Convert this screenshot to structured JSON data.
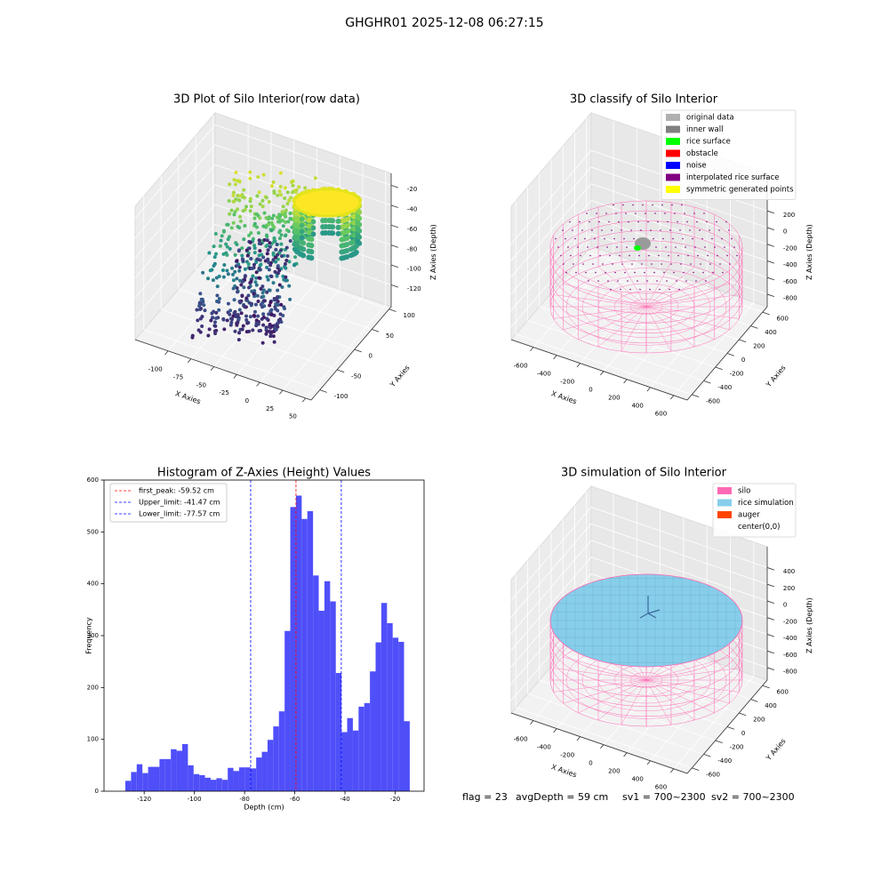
{
  "title": "GHGHR01 2025-12-08 06:27:15",
  "chart_data": [
    {
      "type": "scatter3d",
      "title": "3D Plot of Silo Interior(row data)",
      "xlabel": "X Axies",
      "ylabel": "Y Axies",
      "zlabel": "Z Axies (Depth)",
      "xlim": [
        -136,
        56
      ],
      "ylim": [
        -125,
        106
      ],
      "zlim": [
        -142,
        -8
      ],
      "xticks": [
        -100,
        -75,
        -50,
        -25,
        0,
        25,
        50
      ],
      "yticks": [
        -100,
        -50,
        0,
        50,
        100
      ],
      "zticks": [
        -120,
        -100,
        -80,
        -60,
        -40,
        -20
      ]
    },
    {
      "type": "scatter3d",
      "title": "3D classify of Silo Interior",
      "xlabel": "X Axies",
      "ylabel": "Y Axies",
      "zlabel": "Z Axies (Depth)",
      "xlim": [
        -790,
        715
      ],
      "ylim": [
        -680,
        680
      ],
      "zlim": [
        -950,
        650
      ],
      "xticks": [
        -600,
        -400,
        -200,
        0,
        200,
        400,
        600
      ],
      "yticks": [
        -600,
        -400,
        -200,
        0,
        200,
        400,
        600
      ],
      "zticks": [
        -800,
        -600,
        -400,
        -200,
        0,
        200
      ],
      "legend": {
        "loc": "upper right",
        "entries": [
          {
            "name": "original data",
            "color": "#b0b0b0"
          },
          {
            "name": "inner wall",
            "color": "#808080"
          },
          {
            "name": "rice surface",
            "color": "#00ff00"
          },
          {
            "name": "obstacle",
            "color": "#ff0000"
          },
          {
            "name": "noise",
            "color": "#0000ff"
          },
          {
            "name": "interpolated rice surface",
            "color": "#800080"
          },
          {
            "name": "symmetric generated points",
            "color": "#ffff00"
          }
        ]
      }
    },
    {
      "type": "histogram",
      "title": "Histogram of Z-Axies (Height) Values",
      "xlabel": "Depth (cm)",
      "ylabel": "Frequency",
      "color": "#4f4ff9",
      "bins": [
        -127.5,
        -125.23,
        -122.97,
        -120.7,
        -118.44,
        -116.17,
        -113.9,
        -111.64,
        -109.37,
        -107.11,
        -104.84,
        -102.57,
        -100.31,
        -98.04,
        -95.78,
        -93.51,
        -91.24,
        -88.98,
        -86.71,
        -84.45,
        -82.18,
        -79.91,
        -77.65,
        -75.38,
        -73.12,
        -70.85,
        -68.58,
        -66.32,
        -64.05,
        -61.79,
        -59.52,
        -57.25,
        -54.99,
        -52.72,
        -50.46,
        -48.19,
        -45.92,
        -43.66,
        -41.39,
        -39.13,
        -36.86,
        -34.59,
        -32.33,
        -30.06,
        -27.8,
        -25.53,
        -23.26,
        -21.0,
        -18.73,
        -16.47,
        -14.2
      ],
      "counts": [
        20,
        37,
        52,
        35,
        47,
        47,
        62,
        62,
        81,
        78,
        91,
        50,
        33,
        31,
        26,
        22,
        25,
        22,
        45,
        39,
        46,
        46,
        44,
        65,
        76,
        99,
        125,
        154,
        309,
        548,
        570,
        525,
        540,
        416,
        348,
        405,
        366,
        228,
        114,
        141,
        117,
        163,
        170,
        231,
        287,
        363,
        324,
        296,
        288,
        135
      ],
      "xlim": [
        -136,
        -8.5
      ],
      "ylim": [
        0,
        600
      ],
      "xticks": [
        -120,
        -100,
        -80,
        -60,
        -40,
        -20
      ],
      "yticks": [
        0,
        100,
        200,
        300,
        400,
        500,
        600
      ],
      "vlines": [
        {
          "label": "first_peak: -59.52 cm",
          "value": -59.52,
          "color": "#ff0000"
        },
        {
          "label": "Upper_limit: -41.47 cm",
          "value": -41.47,
          "color": "#0000ff"
        },
        {
          "label": "Lower_limit: -77.57 cm",
          "value": -77.57,
          "color": "#0000ff"
        }
      ],
      "legend": {
        "loc": "upper left"
      }
    },
    {
      "type": "surface3d",
      "title": "3D simulation of Silo Interior",
      "xlabel": "X Axies",
      "ylabel": "Y Axies",
      "zlabel": "Z Axies (Depth)",
      "xlim": [
        -790,
        715
      ],
      "ylim": [
        -680,
        680
      ],
      "zlim": [
        -950,
        650
      ],
      "xticks": [
        -600,
        -400,
        -200,
        0,
        200,
        400,
        600
      ],
      "yticks": [
        -600,
        -400,
        -200,
        0,
        200,
        400,
        600
      ],
      "zticks": [
        -800,
        -600,
        -400,
        -200,
        0,
        200,
        400
      ],
      "legend": {
        "loc": "upper right",
        "entries": [
          {
            "name": "silo",
            "color": "#ff69b4"
          },
          {
            "name": "rice simulation",
            "color": "#87ceeb"
          },
          {
            "name": "auger",
            "color": "#ff4500"
          },
          {
            "name": "center(0,0)",
            "color": "#ffffff"
          }
        ]
      }
    }
  ],
  "footer": [
    "flag = 23",
    "avgDepth = 59 cm",
    "sv1 = 700~2300",
    "sv2 = 700~2300"
  ]
}
